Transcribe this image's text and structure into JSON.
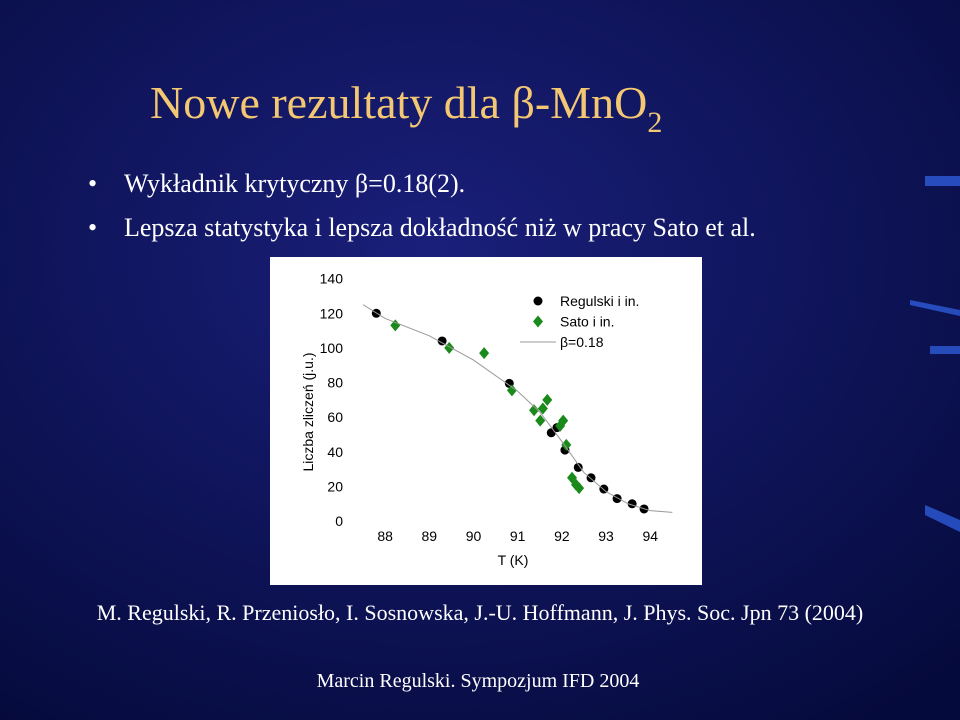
{
  "slide": {
    "title": "Nowe rezultaty dla β-MnO",
    "title_subscript": "2",
    "bullets": [
      "Wykładnik krytyczny β=0.18(2).",
      "Lepsza statystyka i lepsza dokładność niż w pracy Sato et al."
    ],
    "citation": "M. Regulski, R. Przeniosło, I. Sosnowska, J.-U. Hoffmann, J. Phys. Soc. Jpn 73 (2004)",
    "footer": "Marcin Regulski. Sympozjum IFD 2004"
  },
  "chart_data": {
    "type": "scatter",
    "x_label": "T (K)",
    "y_label": "Liczba zliczeń (j.u.)",
    "xlim": [
      87.25,
      94.9
    ],
    "ylim": [
      -4,
      145
    ],
    "xticks": [
      88,
      89,
      90,
      91,
      92,
      93,
      94
    ],
    "yticks": [
      0,
      20,
      40,
      60,
      80,
      100,
      120,
      140
    ],
    "series": [
      {
        "name": "Regulski i in.",
        "color": "#000000",
        "marker": "circle",
        "x": [
          87.8,
          89.29,
          90.81,
          91.76,
          91.89,
          92.07,
          92.37,
          92.66,
          92.95,
          93.25,
          93.59,
          93.86
        ],
        "values": [
          120,
          104,
          79.5,
          51,
          54,
          41,
          31,
          25,
          18.5,
          13,
          10,
          7
        ]
      },
      {
        "name": "Sato i in.",
        "color": "#1a8a1a",
        "marker": "diamond",
        "x": [
          88.23,
          89.45,
          90.24,
          90.87,
          91.37,
          91.51,
          91.57,
          91.67,
          91.96,
          92.03,
          92.1,
          92.23,
          92.32,
          92.39
        ],
        "values": [
          113,
          100,
          97,
          75.5,
          64,
          58,
          65,
          70,
          55,
          58,
          44,
          25,
          21,
          19
        ]
      },
      {
        "name": "β=0.18",
        "color": "#999999",
        "marker": "line",
        "x": [
          87.5,
          88,
          89,
          90,
          91,
          91.5,
          92,
          92.5,
          93,
          93.5,
          94,
          94.5
        ],
        "values": [
          125,
          117,
          107,
          93,
          75,
          63,
          46,
          28,
          17,
          10,
          6,
          5
        ]
      }
    ]
  }
}
